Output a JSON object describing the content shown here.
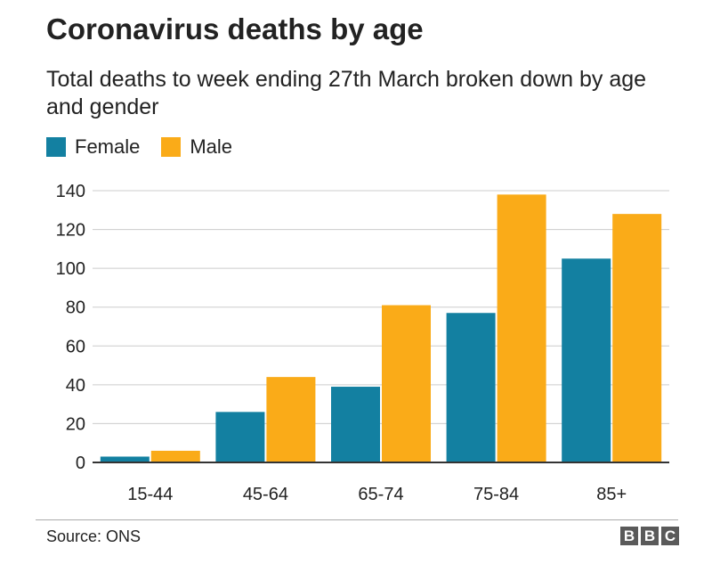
{
  "chart_data": {
    "type": "bar",
    "title": "Coronavirus deaths by age",
    "subtitle": "Total deaths to week ending 27th March broken down by age and gender",
    "categories": [
      "15-44",
      "45-64",
      "65-74",
      "75-84",
      "85+"
    ],
    "series": [
      {
        "name": "Female",
        "color": "#1380A1",
        "values": [
          3,
          26,
          39,
          77,
          105
        ]
      },
      {
        "name": "Male",
        "color": "#FAAB18",
        "values": [
          6,
          44,
          81,
          138,
          128
        ]
      }
    ],
    "ylim": [
      0,
      140
    ],
    "yticks": [
      0,
      20,
      40,
      60,
      80,
      100,
      120,
      140
    ],
    "grid": true,
    "legend": "top-left",
    "xlabel": "",
    "ylabel": ""
  },
  "footer": {
    "source": "Source: ONS",
    "logo": [
      "B",
      "B",
      "C"
    ]
  }
}
